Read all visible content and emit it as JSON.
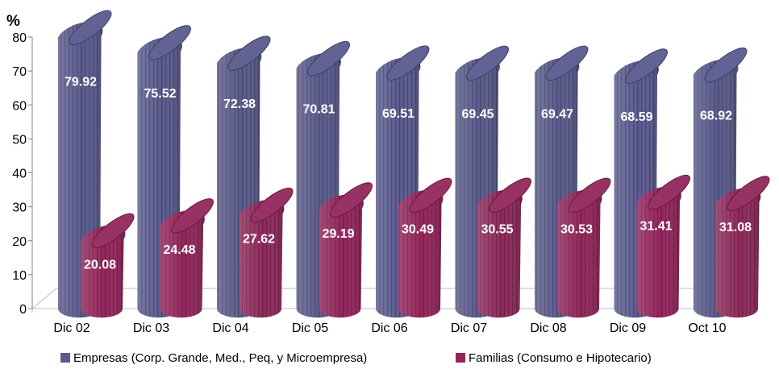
{
  "chart_data": {
    "type": "bar",
    "unit_label": "%",
    "categories": [
      "Dic 02",
      "Dic 03",
      "Dic 04",
      "Dic 05",
      "Dic 06",
      "Dic 07",
      "Dic 08",
      "Dic 09",
      "Oct 10"
    ],
    "series": [
      {
        "name": "Empresas (Corp. Grande, Med., Peq, y Microempresa)",
        "color": "#5A5B8E",
        "values": [
          79.92,
          75.52,
          72.38,
          70.81,
          69.51,
          69.45,
          69.47,
          68.59,
          68.92
        ]
      },
      {
        "name": "Familias (Consumo e Hipotecario)",
        "color": "#93265C",
        "values": [
          20.08,
          24.48,
          27.62,
          29.19,
          30.49,
          30.55,
          30.53,
          31.41,
          31.08
        ]
      }
    ],
    "ylim": [
      0,
      80
    ],
    "yticks": [
      0,
      10,
      20,
      30,
      40,
      50,
      60,
      70,
      80
    ],
    "grid": false,
    "legend_position": "bottom",
    "style": "3d-cylinder"
  }
}
